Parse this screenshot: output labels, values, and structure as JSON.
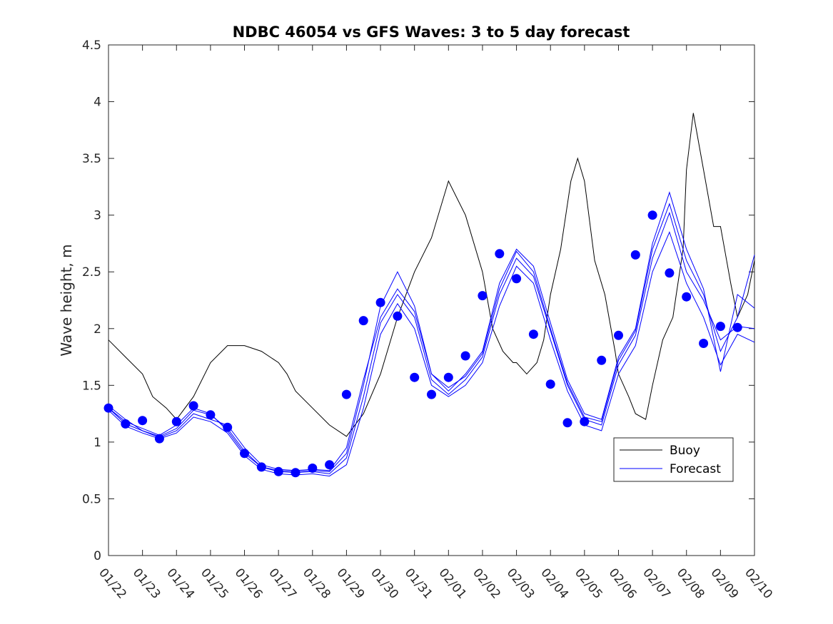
{
  "chart_data": {
    "type": "line",
    "title": "NDBC 46054 vs GFS Waves: 3 to 5 day forecast",
    "xlabel": "",
    "ylabel": "Wave height, m",
    "xlim": [
      0,
      19
    ],
    "ylim": [
      0,
      4.5
    ],
    "yticks": [
      0,
      0.5,
      1,
      1.5,
      2,
      2.5,
      3,
      3.5,
      4,
      4.5
    ],
    "ytick_labels": [
      "0",
      "0.5",
      "1",
      "1.5",
      "2",
      "2.5",
      "3",
      "3.5",
      "4",
      "4.5"
    ],
    "xticks": [
      0,
      1,
      2,
      3,
      4,
      5,
      6,
      7,
      8,
      9,
      10,
      11,
      12,
      13,
      14,
      15,
      16,
      17,
      18,
      19
    ],
    "xtick_labels": [
      "01/22",
      "01/23",
      "01/24",
      "01/25",
      "01/26",
      "01/27",
      "01/28",
      "01/29",
      "01/30",
      "01/31",
      "02/01",
      "02/02",
      "02/03",
      "02/04",
      "02/05",
      "02/06",
      "02/07",
      "02/08",
      "02/09",
      "02/10"
    ],
    "legend": {
      "position": "bottom-right",
      "entries": [
        "Buoy",
        "Forecast"
      ]
    },
    "colors": {
      "buoy": "#000000",
      "forecast": "#0000ff",
      "axes": "#262626",
      "background": "#ffffff"
    },
    "series": [
      {
        "name": "Buoy",
        "role": "buoy",
        "x": [
          0.0,
          0.5,
          1.0,
          1.3,
          1.7,
          2.0,
          2.5,
          3.0,
          3.5,
          4.0,
          4.5,
          5.0,
          5.25,
          5.5,
          6.0,
          6.5,
          7.0,
          7.5,
          8.0,
          8.5,
          9.0,
          9.5,
          10.0,
          10.5,
          11.0,
          11.3,
          11.6,
          11.9,
          12.0,
          12.3,
          12.6,
          12.8,
          13.0,
          13.3,
          13.6,
          13.8,
          14.0,
          14.3,
          14.6,
          14.9,
          15.0,
          15.3,
          15.5,
          15.8,
          16.0,
          16.3,
          16.6,
          16.7,
          16.9,
          17.0,
          17.2,
          17.5,
          17.8,
          18.0,
          18.3,
          18.5,
          18.8,
          19.0
        ],
        "y": [
          1.9,
          1.75,
          1.6,
          1.4,
          1.3,
          1.2,
          1.4,
          1.7,
          1.85,
          1.85,
          1.8,
          1.7,
          1.6,
          1.45,
          1.3,
          1.15,
          1.05,
          1.25,
          1.6,
          2.1,
          2.5,
          2.8,
          3.3,
          3.0,
          2.5,
          2.0,
          1.8,
          1.7,
          1.7,
          1.6,
          1.7,
          1.9,
          2.3,
          2.7,
          3.3,
          3.5,
          3.3,
          2.6,
          2.3,
          1.8,
          1.6,
          1.4,
          1.25,
          1.2,
          1.5,
          1.9,
          2.1,
          2.3,
          2.7,
          3.4,
          3.9,
          3.4,
          2.9,
          2.9,
          2.4,
          2.1,
          2.3,
          2.6
        ]
      },
      {
        "name": "Forecast run 1",
        "role": "forecast",
        "x": [
          0.0,
          0.5,
          1.0,
          1.5,
          2.0,
          2.5,
          3.0,
          3.5,
          4.0,
          4.5,
          5.0,
          5.5,
          6.0,
          6.5,
          7.0,
          7.5,
          8.0,
          8.5,
          9.0,
          9.5,
          10.0,
          10.5,
          11.0,
          11.5,
          12.0,
          12.5,
          13.0,
          13.5,
          14.0,
          14.5,
          15.0,
          15.5,
          16.0,
          16.5,
          17.0,
          17.5,
          18.0,
          18.5,
          19.0
        ],
        "y": [
          1.3,
          1.16,
          1.1,
          1.05,
          1.12,
          1.28,
          1.24,
          1.12,
          0.92,
          0.78,
          0.74,
          0.73,
          0.74,
          0.72,
          0.86,
          1.4,
          2.05,
          2.3,
          2.1,
          1.55,
          1.42,
          1.55,
          1.75,
          2.3,
          2.62,
          2.46,
          1.98,
          1.5,
          1.2,
          1.15,
          1.68,
          1.94,
          2.62,
          3.02,
          2.5,
          2.25,
          1.9,
          2.02,
          2.0
        ]
      },
      {
        "name": "Forecast run 2",
        "role": "forecast",
        "x": [
          0.0,
          0.5,
          1.0,
          1.5,
          2.0,
          2.5,
          3.0,
          3.5,
          4.0,
          4.5,
          5.0,
          5.5,
          6.0,
          6.5,
          7.0,
          7.5,
          8.0,
          8.5,
          9.0,
          9.5,
          10.0,
          10.5,
          11.0,
          11.5,
          12.0,
          12.5,
          13.0,
          13.5,
          14.0,
          14.5,
          15.0,
          15.5,
          16.0,
          16.5,
          17.0,
          17.5,
          18.0,
          18.5,
          19.0
        ],
        "y": [
          1.28,
          1.14,
          1.08,
          1.03,
          1.08,
          1.22,
          1.18,
          1.08,
          0.88,
          0.76,
          0.72,
          0.71,
          0.72,
          0.7,
          0.8,
          1.3,
          1.95,
          2.22,
          2.0,
          1.5,
          1.4,
          1.5,
          1.7,
          2.2,
          2.55,
          2.4,
          1.9,
          1.45,
          1.15,
          1.1,
          1.6,
          1.85,
          2.5,
          2.85,
          2.4,
          2.1,
          1.68,
          1.95,
          1.88
        ]
      },
      {
        "name": "Forecast run 3",
        "role": "forecast",
        "x": [
          0.0,
          0.5,
          1.0,
          1.5,
          2.0,
          2.5,
          3.0,
          3.5,
          4.0,
          4.5,
          5.0,
          5.5,
          6.0,
          6.5,
          7.0,
          7.5,
          8.0,
          8.5,
          9.0,
          9.5,
          10.0,
          10.5,
          11.0,
          11.5,
          12.0,
          12.5,
          13.0,
          13.5,
          14.0,
          14.5,
          15.0,
          15.5,
          16.0,
          16.5,
          17.0,
          17.5,
          18.0,
          18.5,
          19.0
        ],
        "y": [
          1.3,
          1.18,
          1.12,
          1.06,
          1.15,
          1.3,
          1.25,
          1.1,
          0.9,
          0.78,
          0.75,
          0.74,
          0.75,
          0.74,
          0.9,
          1.5,
          2.2,
          2.5,
          2.2,
          1.6,
          1.45,
          1.6,
          1.8,
          2.4,
          2.7,
          2.55,
          2.05,
          1.55,
          1.25,
          1.2,
          1.75,
          2.0,
          2.75,
          3.2,
          2.7,
          2.35,
          1.62,
          2.3,
          2.18
        ]
      },
      {
        "name": "Forecast run 4",
        "role": "forecast",
        "x": [
          0.0,
          0.5,
          1.0,
          1.5,
          2.0,
          2.5,
          3.0,
          3.5,
          4.0,
          4.5,
          5.0,
          5.5,
          6.0,
          6.5,
          7.0,
          7.5,
          8.0,
          8.5,
          9.0,
          9.5,
          10.0,
          10.5,
          11.0,
          11.5,
          12.0,
          12.5,
          13.0,
          13.5,
          14.0,
          14.5,
          15.0,
          15.5,
          16.0,
          16.5,
          17.0,
          17.5,
          18.0,
          18.5,
          19.0
        ],
        "y": [
          1.32,
          1.2,
          1.1,
          1.04,
          1.1,
          1.25,
          1.2,
          1.15,
          0.95,
          0.8,
          0.76,
          0.75,
          0.76,
          0.75,
          0.95,
          1.55,
          2.1,
          2.35,
          2.15,
          1.6,
          1.48,
          1.58,
          1.78,
          2.35,
          2.68,
          2.5,
          2.0,
          1.52,
          1.22,
          1.18,
          1.72,
          1.98,
          2.7,
          3.1,
          2.6,
          2.3,
          1.8,
          2.1,
          2.65
        ]
      }
    ],
    "forecast_markers": {
      "x": [
        0.0,
        0.5,
        1.0,
        1.5,
        2.0,
        2.5,
        3.0,
        3.5,
        4.0,
        4.5,
        5.0,
        5.5,
        6.0,
        6.5,
        7.0,
        7.5,
        8.0,
        8.5,
        9.0,
        9.5,
        10.0,
        10.5,
        11.0,
        11.5,
        12.0,
        12.5,
        13.0,
        13.5,
        14.0,
        14.5,
        15.0,
        15.5,
        16.0,
        16.5,
        17.0,
        17.5,
        18.0,
        18.5
      ],
      "y": [
        1.3,
        1.16,
        1.19,
        1.03,
        1.18,
        1.32,
        1.24,
        1.13,
        0.9,
        0.78,
        0.74,
        0.73,
        0.77,
        0.8,
        1.42,
        2.07,
        2.23,
        2.11,
        1.57,
        1.42,
        1.57,
        1.76,
        2.29,
        2.66,
        2.44,
        1.95,
        1.51,
        1.17,
        1.18,
        1.72,
        1.94,
        2.65,
        3.0,
        2.49,
        2.28,
        1.87,
        2.02,
        2.01
      ]
    }
  }
}
